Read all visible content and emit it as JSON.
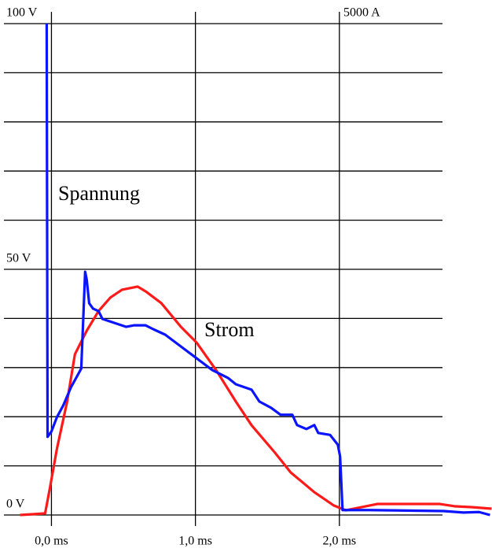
{
  "chart_data": {
    "type": "line",
    "xlim": [
      -0.33,
      3.06
    ],
    "xticks": [
      {
        "value": 0,
        "label": "0,0 ms"
      },
      {
        "value": 1,
        "label": "1,0 ms"
      },
      {
        "value": 2,
        "label": "2,0 ms"
      }
    ],
    "ylim": [
      0,
      100
    ],
    "yticks": [
      {
        "value": 0,
        "label": "0 V"
      },
      {
        "value": 50,
        "label": "50 V"
      },
      {
        "value": 100,
        "label": "100 V"
      }
    ],
    "ygrid": [
      0,
      10,
      20,
      30,
      40,
      50,
      60,
      70,
      80,
      90,
      100
    ],
    "y2lim": [
      0,
      5000
    ],
    "y2ticks": [
      {
        "value": 5000,
        "label": "5000 A"
      }
    ],
    "grid": true,
    "series": [
      {
        "name": "Spannung",
        "color": "#0a14ff",
        "x": [
          -0.033,
          -0.027,
          0.0,
          0.038,
          0.082,
          0.136,
          0.207,
          0.234,
          0.245,
          0.262,
          0.289,
          0.327,
          0.354,
          0.436,
          0.518,
          0.572,
          0.654,
          0.708,
          0.79,
          0.899,
          1.008,
          1.117,
          1.226,
          1.281,
          1.39,
          1.444,
          1.526,
          1.591,
          1.673,
          1.706,
          1.771,
          1.826,
          1.853,
          1.935,
          1.989,
          2.005,
          2.022,
          2.207,
          2.725,
          2.861,
          2.97,
          3.046
        ],
        "values": [
          100.0,
          15.9,
          17.0,
          19.9,
          22.3,
          26.0,
          29.8,
          49.5,
          47.9,
          43.1,
          42.0,
          41.5,
          39.9,
          39.1,
          38.3,
          38.6,
          38.6,
          37.8,
          36.7,
          34.3,
          31.9,
          29.5,
          27.9,
          26.6,
          25.5,
          23.1,
          21.8,
          20.4,
          20.4,
          18.3,
          17.5,
          18.3,
          16.7,
          16.3,
          14.3,
          11.9,
          1.0,
          1.0,
          0.8,
          0.5,
          0.6,
          0
        ]
      },
      {
        "name": "Strom",
        "color": "#ff1a1a",
        "axis": "y2",
        "x": [
          -0.218,
          -0.044,
          -0.011,
          0.038,
          0.109,
          0.163,
          0.245,
          0.327,
          0.409,
          0.49,
          0.599,
          0.654,
          0.763,
          0.899,
          1.008,
          1.144,
          1.281,
          1.39,
          1.553,
          1.662,
          1.826,
          1.962,
          2.044,
          2.153,
          2.262,
          2.48,
          2.698,
          2.807,
          2.916,
          3.057
        ],
        "values": [
          0,
          16,
          272,
          673,
          1154,
          1635,
          1875,
          2075,
          2212,
          2292,
          2324,
          2276,
          2156,
          1915,
          1755,
          1474,
          1154,
          913,
          633,
          433,
          232,
          96,
          48,
          80,
          112,
          112,
          112,
          88,
          80,
          64
        ]
      }
    ]
  }
}
